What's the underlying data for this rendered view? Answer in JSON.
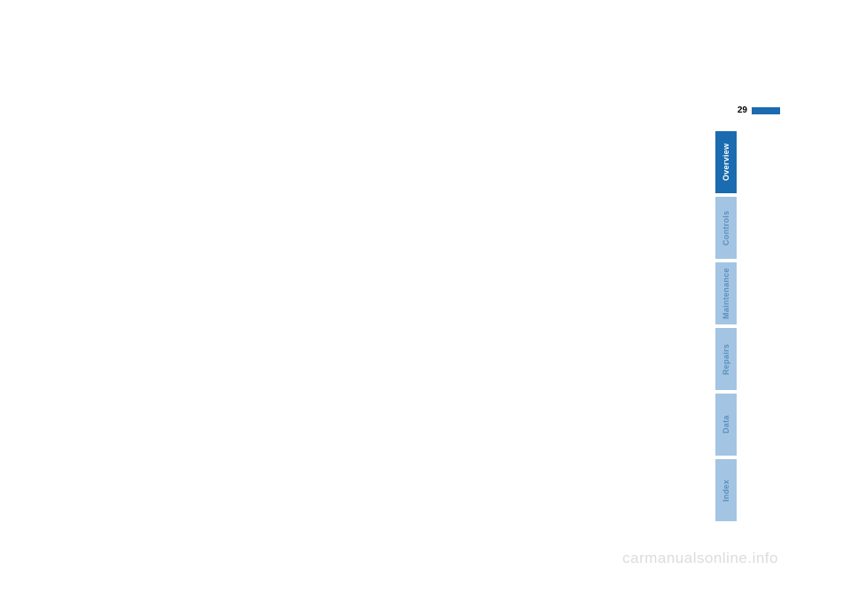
{
  "page": {
    "number": "29",
    "number_color": "#000000",
    "bar_color": "#1a6bb0"
  },
  "tabs": {
    "active_bg": "#1a6bb0",
    "active_fg": "#ffffff",
    "inactive_bg": "#a3c5e3",
    "inactive_fg": "#5a8fbf",
    "items": [
      {
        "label": "Overview",
        "active": true
      },
      {
        "label": "Controls",
        "active": false
      },
      {
        "label": "Maintenance",
        "active": false
      },
      {
        "label": "Repairs",
        "active": false
      },
      {
        "label": "Data",
        "active": false
      },
      {
        "label": "Index",
        "active": false
      }
    ]
  },
  "watermark": {
    "text": "carmanualsonline.info",
    "color": "#dcdcdc"
  }
}
